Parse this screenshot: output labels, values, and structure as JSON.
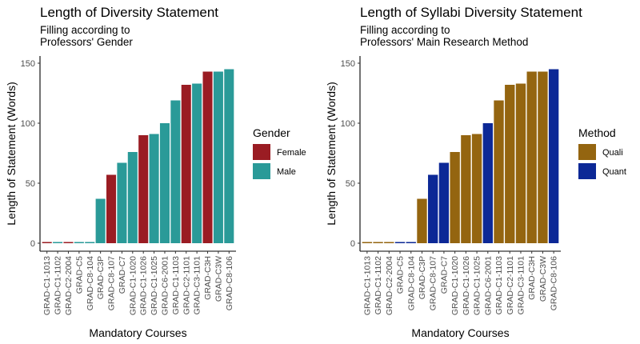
{
  "chart_data": [
    {
      "type": "bar",
      "title": "Length of Diversity Statement",
      "subtitle_lines": [
        "Filling according to",
        "Professors' Gender"
      ],
      "xlabel": "Mandatory Courses",
      "ylabel": "Length of Statement (Words)",
      "ylim": [
        0,
        150
      ],
      "yticks": [
        0,
        50,
        100,
        150
      ],
      "legend_title": "Gender",
      "legend_position": "right",
      "grid": false,
      "groups": [
        {
          "name": "Female",
          "color": "#9a1c23"
        },
        {
          "name": "Male",
          "color": "#2a9a98"
        }
      ],
      "categories": [
        "GRAD-C1-1013",
        "GRAD-C1-1102",
        "GRAD-C2-2004",
        "GRAD-C5",
        "GRAD-C8-104",
        "GRAD-C3P",
        "GRAD-C8-107",
        "GRAD-C7",
        "GRAD-C1-1020",
        "GRAD-C1-1026",
        "GRAD-C1-1025",
        "GRAD-C6-2001",
        "GRAD-C1-1103",
        "GRAD-C2-1101",
        "GRAD-C3-1101",
        "GRAD-C3H",
        "GRAD-C3W",
        "GRAD-C8-106"
      ],
      "values": [
        1,
        1,
        1,
        1,
        1,
        37,
        57,
        67,
        76,
        90,
        91,
        100,
        119,
        132,
        133,
        143,
        143,
        145
      ],
      "group": [
        "Female",
        "Male",
        "Female",
        "Male",
        "Male",
        "Male",
        "Female",
        "Male",
        "Male",
        "Female",
        "Male",
        "Male",
        "Male",
        "Female",
        "Male",
        "Female",
        "Male",
        "Male"
      ]
    },
    {
      "type": "bar",
      "title": "Length of Syllabi Diversity Statement",
      "subtitle_lines": [
        "Filling according to",
        "Professors' Main Research Method"
      ],
      "xlabel": "Mandatory Courses",
      "ylabel": "Length of Statement (Words)",
      "ylim": [
        0,
        150
      ],
      "yticks": [
        0,
        50,
        100,
        150
      ],
      "legend_title": "Method",
      "legend_position": "right",
      "grid": false,
      "groups": [
        {
          "name": "Quali",
          "color": "#946510"
        },
        {
          "name": "Quant",
          "color": "#0c2896"
        }
      ],
      "categories": [
        "GRAD-C1-1013",
        "GRAD-C1-1102",
        "GRAD-C2-2004",
        "GRAD-C5",
        "GRAD-C8-104",
        "GRAD-C3P",
        "GRAD-C8-107",
        "GRAD-C7",
        "GRAD-C1-1020",
        "GRAD-C1-1026",
        "GRAD-C1-1025",
        "GRAD-C6-2001",
        "GRAD-C1-1103",
        "GRAD-C2-1101",
        "GRAD-C3-1101",
        "GRAD-C3H",
        "GRAD-C3W",
        "GRAD-C8-106"
      ],
      "values": [
        1,
        1,
        1,
        1,
        1,
        37,
        57,
        67,
        76,
        90,
        91,
        100,
        119,
        132,
        133,
        143,
        143,
        145
      ],
      "group": [
        "Quali",
        "Quali",
        "Quali",
        "Quant",
        "Quant",
        "Quali",
        "Quant",
        "Quant",
        "Quali",
        "Quali",
        "Quali",
        "Quant",
        "Quali",
        "Quali",
        "Quali",
        "Quali",
        "Quali",
        "Quant"
      ]
    }
  ]
}
